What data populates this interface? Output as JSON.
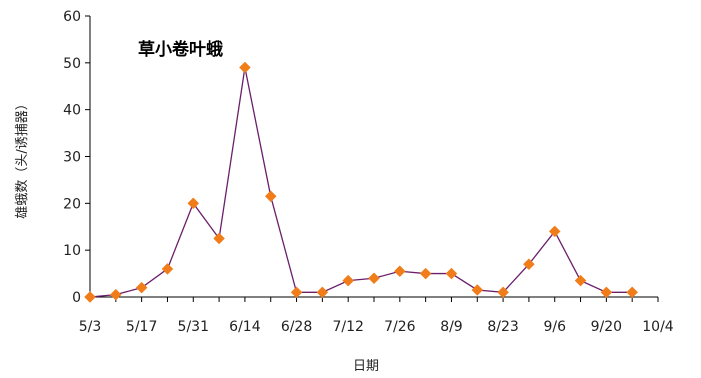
{
  "chart_data": {
    "type": "line",
    "title": "草小卷叶蛾",
    "xlabel": "日期",
    "ylabel": "雄蛾数（头/诱捕器）",
    "x_tick_labels": [
      "5/3",
      "5/17",
      "5/31",
      "6/14",
      "6/28",
      "7/12",
      "7/26",
      "8/9",
      "8/23",
      "9/6",
      "9/20",
      "10/4"
    ],
    "ylim": [
      0,
      60
    ],
    "y_ticks": [
      0,
      10,
      20,
      30,
      40,
      50,
      60
    ],
    "grid": false,
    "legend": "none",
    "series": [
      {
        "color": "#6b1f6b",
        "marker_color": "#f07d1a",
        "marker": "diamond",
        "points": [
          {
            "x": "5/3",
            "y": 0
          },
          {
            "x": "5/10",
            "y": 0.5
          },
          {
            "x": "5/17",
            "y": 2
          },
          {
            "x": "5/24",
            "y": 6
          },
          {
            "x": "5/31",
            "y": 20
          },
          {
            "x": "6/7",
            "y": 12.5
          },
          {
            "x": "6/14",
            "y": 49
          },
          {
            "x": "6/21",
            "y": 21.5
          },
          {
            "x": "6/28",
            "y": 1
          },
          {
            "x": "7/5",
            "y": 1
          },
          {
            "x": "7/12",
            "y": 3.5
          },
          {
            "x": "7/19",
            "y": 4
          },
          {
            "x": "7/26",
            "y": 5.5
          },
          {
            "x": "8/2",
            "y": 5
          },
          {
            "x": "8/9",
            "y": 5
          },
          {
            "x": "8/16",
            "y": 1.5
          },
          {
            "x": "8/23",
            "y": 1
          },
          {
            "x": "8/30",
            "y": 7
          },
          {
            "x": "9/6",
            "y": 14
          },
          {
            "x": "9/13",
            "y": 3.5
          },
          {
            "x": "9/20",
            "y": 1
          },
          {
            "x": "9/27",
            "y": 1
          }
        ]
      }
    ]
  }
}
